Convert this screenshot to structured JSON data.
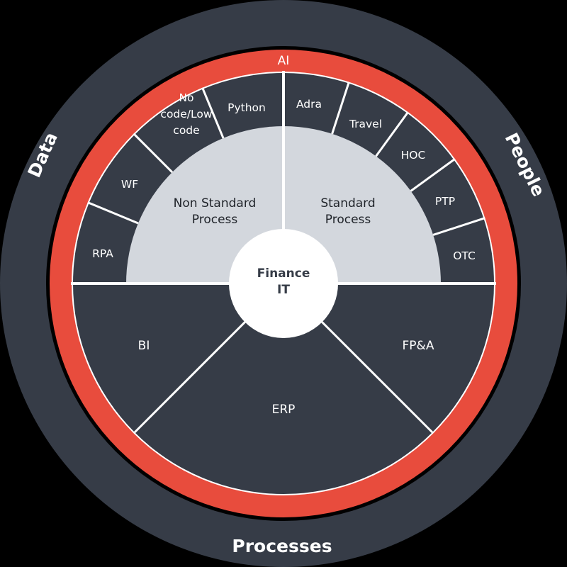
{
  "colors": {
    "outer_ring": "#363c47",
    "red_ring": "#e84c3d",
    "segment": "#363c47",
    "light_gray": "#d3d7dd",
    "center": "#ffffff",
    "divider": "#ffffff"
  },
  "outer_ring": {
    "left": "Data",
    "right": "People",
    "bottom": "Processes"
  },
  "red_ring": {
    "label": "AI"
  },
  "center": {
    "line1": "Finance",
    "line2": "IT"
  },
  "non_standard": {
    "line1": "Non Standard",
    "line2": "Process",
    "segments": [
      {
        "lines": [
          "RPA"
        ]
      },
      {
        "lines": [
          "WF"
        ]
      },
      {
        "lines": [
          "No",
          "code/Low",
          "code"
        ]
      },
      {
        "lines": [
          "Python"
        ]
      }
    ]
  },
  "standard": {
    "line1": "Standard",
    "line2": "Process",
    "segments": [
      {
        "lines": [
          "Adra"
        ]
      },
      {
        "lines": [
          "Travel"
        ]
      },
      {
        "lines": [
          "HOC"
        ]
      },
      {
        "lines": [
          "PTP"
        ]
      },
      {
        "lines": [
          "OTC"
        ]
      }
    ]
  },
  "bottom": {
    "left": "BI",
    "middle": "ERP",
    "right": "FP&A"
  }
}
